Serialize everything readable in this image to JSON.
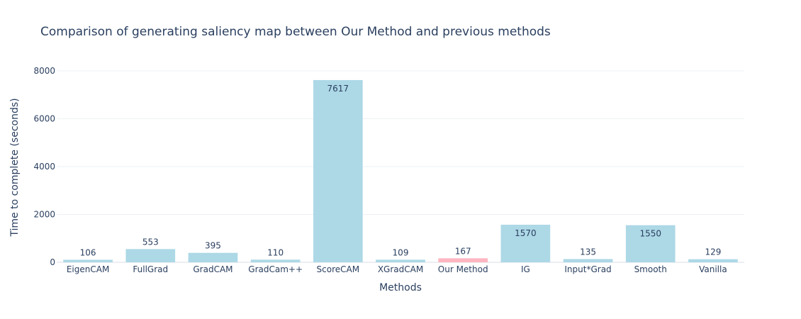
{
  "chart_data": {
    "type": "bar",
    "title": "Comparison of generating saliency map between Our Method and previous methods",
    "xlabel": "Methods",
    "ylabel": "Time to complete (seconds)",
    "categories": [
      "EigenCAM",
      "FullGrad",
      "GradCAM",
      "GradCam++",
      "ScoreCAM",
      "XGradCAM",
      "Our Method",
      "IG",
      "Input*Grad",
      "Smooth",
      "Vanilla"
    ],
    "values": [
      106,
      553,
      395,
      110,
      7617,
      109,
      167,
      1570,
      135,
      1550,
      129
    ],
    "highlight": "Our Method",
    "ylim": [
      0,
      8000
    ],
    "yticks": [
      0,
      2000,
      4000,
      6000,
      8000
    ],
    "grid": true,
    "colors": {
      "bar": "#add8e6",
      "highlight": "#ffb6c1",
      "text": "#2a3f5f",
      "grid": "#eef0f4"
    }
  }
}
